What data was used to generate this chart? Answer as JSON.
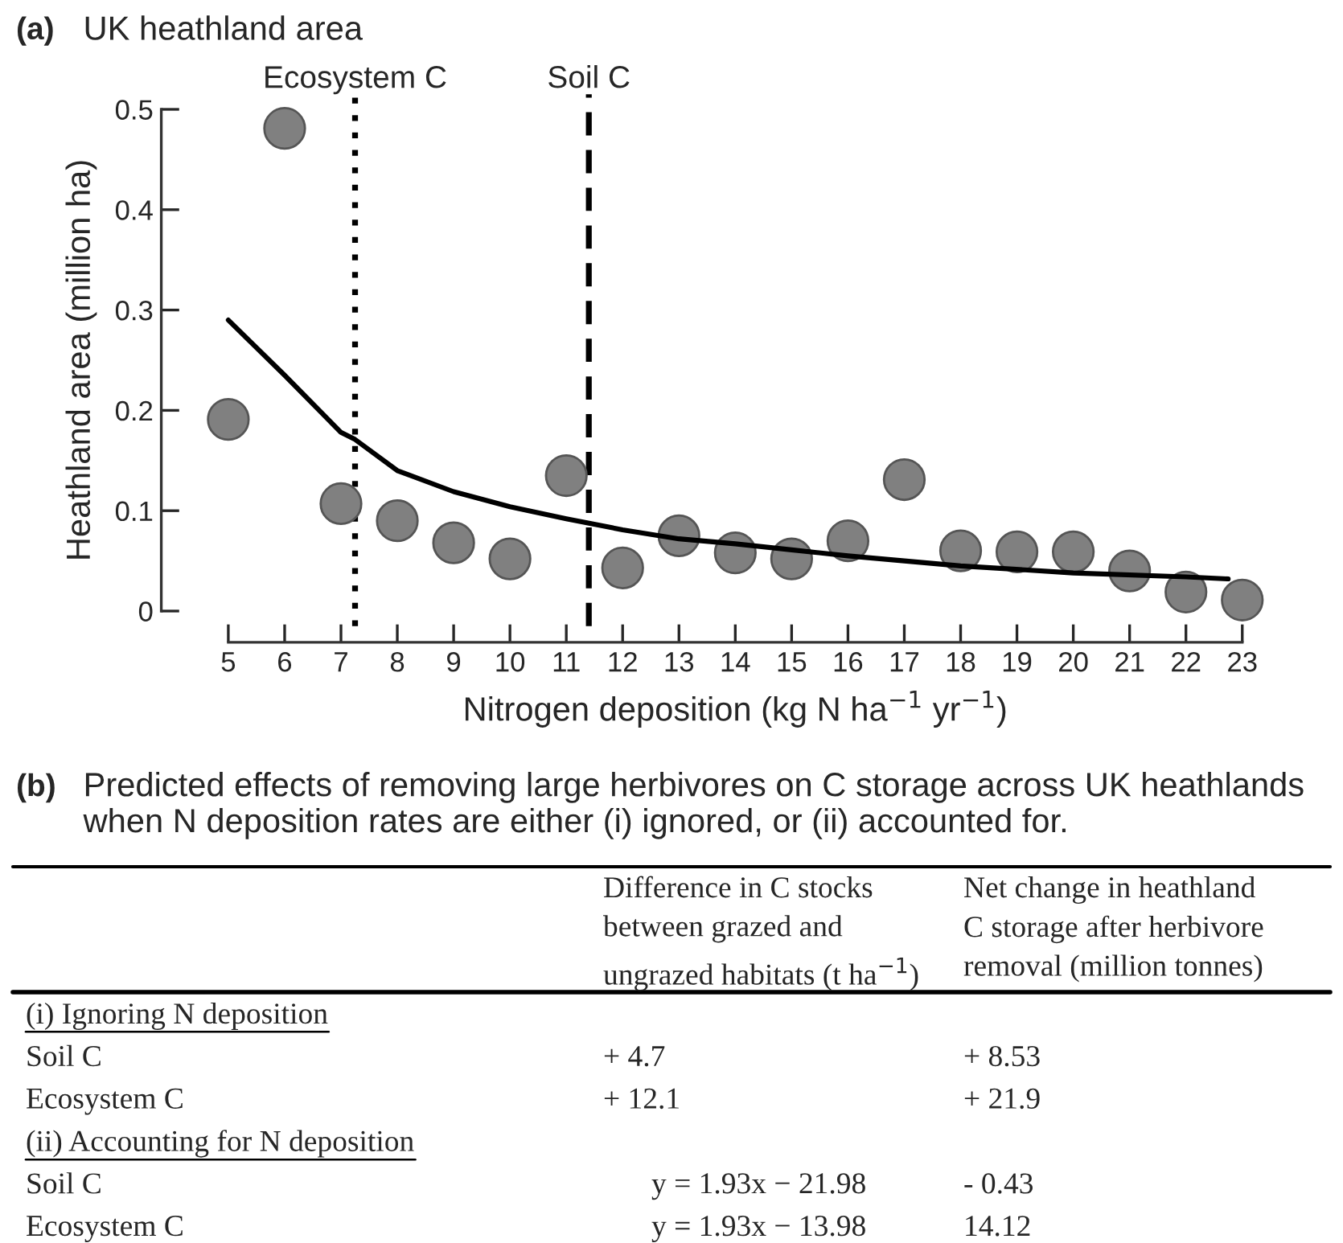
{
  "chart_data": [
    {
      "type": "scatter",
      "title": "UK heathland area",
      "xlabel": "Nitrogen deposition (kg N ha$^{−1}$ yr$^{−1}$)",
      "ylabel": "Heathland area (million ha)",
      "annotations": [
        "(a)"
      ],
      "x": [
        5,
        6,
        7,
        8,
        9,
        10,
        11,
        12,
        13,
        14,
        15,
        16,
        17,
        18,
        19,
        20,
        21,
        22,
        23
      ],
      "series": [
        {
          "type": "scatter",
          "color": "#808080",
          "values": [
            0.191,
            0.481,
            0.107,
            0.09,
            0.068,
            0.052,
            0.135,
            0.043,
            0.075,
            0.058,
            0.052,
            0.07,
            0.131,
            0.06,
            0.059,
            0.059,
            0.04,
            0.019,
            0.011
          ]
        },
        {
          "type": "line",
          "color": "#000000",
          "marker": "none",
          "x": [
            5,
            6,
            7,
            7.25,
            8,
            9,
            10,
            11,
            12,
            13,
            14,
            15,
            16,
            18,
            20,
            22,
            22.75
          ],
          "values": [
            0.29,
            0.235,
            0.178,
            0.171,
            0.14,
            0.119,
            0.104,
            0.092,
            0.081,
            0.072,
            0.067,
            0.061,
            0.055,
            0.045,
            0.038,
            0.034,
            0.032
          ]
        }
      ],
      "xlim": [
        5,
        23
      ],
      "xticks": [
        5,
        6,
        7,
        8,
        9,
        10,
        11,
        12,
        13,
        14,
        15,
        16,
        17,
        18,
        19,
        20,
        21,
        22,
        23
      ],
      "ylim": [
        0,
        0.5
      ],
      "yticks": [
        0,
        0.1,
        0.2,
        0.3,
        0.4,
        0.5
      ],
      "ref_lines": [
        {
          "axis": "x",
          "value": 7.25,
          "label": "Ecosystem C",
          "line_style": "dotted",
          "color": "#000000"
        },
        {
          "axis": "x",
          "value": 11.4,
          "label": "Soil C",
          "line_style": "dashed",
          "color": "#000000"
        }
      ],
      "marker": "circle",
      "grid": false,
      "legend": false
    },
    {
      "type": "other",
      "title": "Predicted effects of removing large herbivores on C storage across UK heathlands when N deposition rates are either (i) ignored, or (ii) accounted for.",
      "annotations": [
        "(b)"
      ],
      "categories": [
        "(i) Ignoring N deposition",
        "Soil C",
        "Ecosystem C",
        "(ii) Accounting for N deposition",
        "Soil C",
        "Ecosystem C"
      ],
      "series": [
        {
          "name": "Difference in C stocks\nbetween grazed and\nungrazed habitats (t ha$^{−1}$)",
          "values": [
            null,
            4.7,
            12.1,
            null,
            null,
            null
          ],
          "value_labels": [
            null,
            "+ 4.7",
            "+ 12.1",
            null,
            "y = 1.93x − 21.98",
            "y = 1.93x − 13.98"
          ]
        },
        {
          "name": "Net change in heathland\nC storage after herbivore\nremoval (million tonnes)",
          "values": [
            null,
            8.53,
            21.9,
            null,
            -0.43,
            14.12
          ],
          "value_labels": [
            null,
            "+ 8.53",
            "+ 21.9",
            null,
            "- 0.43",
            "14.12"
          ]
        }
      ]
    }
  ]
}
